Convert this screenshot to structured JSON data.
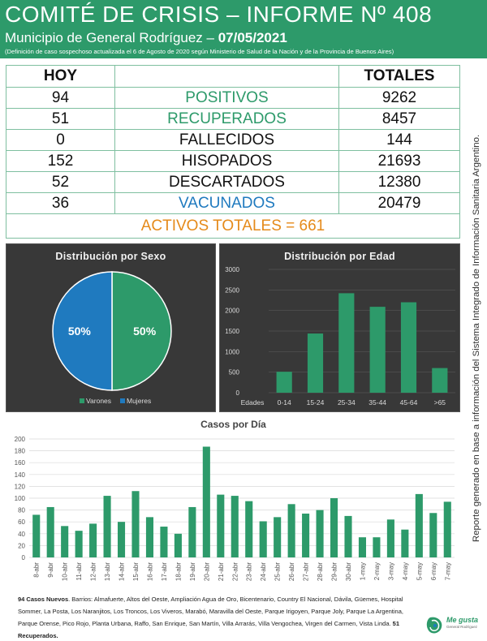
{
  "header": {
    "title": "COMITÉ DE CRISIS – INFORME Nº 408",
    "subtitle_prefix": "Municipio de General Rodríguez – ",
    "date": "07/05/2021",
    "note": "(Definición de caso sospechoso actualizada el 6 de Agosto de 2020 según Ministerio de Salud de la Nación y de la Provincia de Buenos Aires)"
  },
  "stats": {
    "head_left": "HOY",
    "head_right": "TOTALES",
    "rows": [
      {
        "today": "94",
        "label": "POSITIVOS",
        "total": "9262"
      },
      {
        "today": "51",
        "label": "RECUPERADOS",
        "total": "8457"
      },
      {
        "today": "0",
        "label": "FALLECIDOS",
        "total": "144"
      },
      {
        "today": "152",
        "label": "HISOPADOS",
        "total": "21693"
      },
      {
        "today": "52",
        "label": "DESCARTADOS",
        "total": "12380"
      },
      {
        "today": "36",
        "label": "VACUNADOS",
        "total": "20479"
      }
    ],
    "activos": "ACTIVOS TOTALES = 661"
  },
  "colors": {
    "green": "#2d9a6a",
    "blue": "#1f7abf",
    "orange": "#e58a1a",
    "panel": "#383838"
  },
  "side_text": "Reporte generado en base a información del Sistema Integrado de Información Sanitaria Argentino.",
  "footer": {
    "new_label": "94 Casos Nuevos",
    "neighborhoods": ". Barrios: Almafuerte, Altos del Oeste, Ampliación Agua de Oro, Bicentenario, Country El Nacional, Dávila, Güemes, Hospital Sommer, La Posta, Los Naranjitos, Los Troncos, Los Viveros, Marabó, Maravilla del Oeste, Parque Irigoyen, Parque Joly, Parque La Argentina, Parque Orense, Pico Rojo, Planta Urbana, Raffo, San Enrique, San Martín, Villa Arrarás, Villa Vengochea, Virgen del Carmen, Vista Linda. ",
    "recovered": "51 Recuperados."
  },
  "logo": {
    "name": "Me gusta",
    "sub": "General Rodríguez"
  },
  "chart_data": [
    {
      "type": "pie",
      "title": "Distribución por Sexo",
      "labels": [
        "Varones",
        "Mujeres"
      ],
      "values": [
        50,
        50
      ],
      "value_labels": [
        "50%",
        "50%"
      ],
      "colors": [
        "#2d9a6a",
        "#1f7abf"
      ],
      "legend": "bottom"
    },
    {
      "type": "bar",
      "title": "Distribución por Edad",
      "xlabel": "Edades",
      "categories": [
        "0-14",
        "15-24",
        "25-34",
        "35-44",
        "45-64",
        ">65"
      ],
      "values": [
        510,
        1440,
        2420,
        2090,
        2200,
        600
      ],
      "ylim": [
        0,
        3000
      ],
      "yticks": [
        0,
        500,
        1000,
        1500,
        2000,
        2500,
        3000
      ],
      "color": "#2d9a6a",
      "grid": true
    },
    {
      "type": "bar",
      "title": "Casos por Día",
      "categories": [
        "8-abr",
        "9-abr",
        "10-abr",
        "11-abr",
        "12-abr",
        "13-abr",
        "14-abr",
        "15-abr",
        "16-abr",
        "17-abr",
        "18-abr",
        "19-abr",
        "20-abr",
        "21-abr",
        "22-abr",
        "23-abr",
        "24-abr",
        "25-abr",
        "26-abr",
        "27-abr",
        "28-abr",
        "29-abr",
        "30-abr",
        "1-may",
        "2-may",
        "3-may",
        "4-may",
        "5-may",
        "6-may",
        "7-may"
      ],
      "values": [
        72,
        85,
        53,
        45,
        57,
        104,
        60,
        112,
        68,
        52,
        40,
        85,
        187,
        106,
        104,
        95,
        61,
        68,
        90,
        74,
        80,
        100,
        70,
        34,
        34,
        64,
        47,
        107,
        75,
        94
      ],
      "ylim": [
        0,
        200
      ],
      "yticks": [
        0,
        20,
        40,
        60,
        80,
        100,
        120,
        140,
        160,
        180,
        200
      ],
      "color": "#2d9a6a",
      "grid": true
    }
  ]
}
